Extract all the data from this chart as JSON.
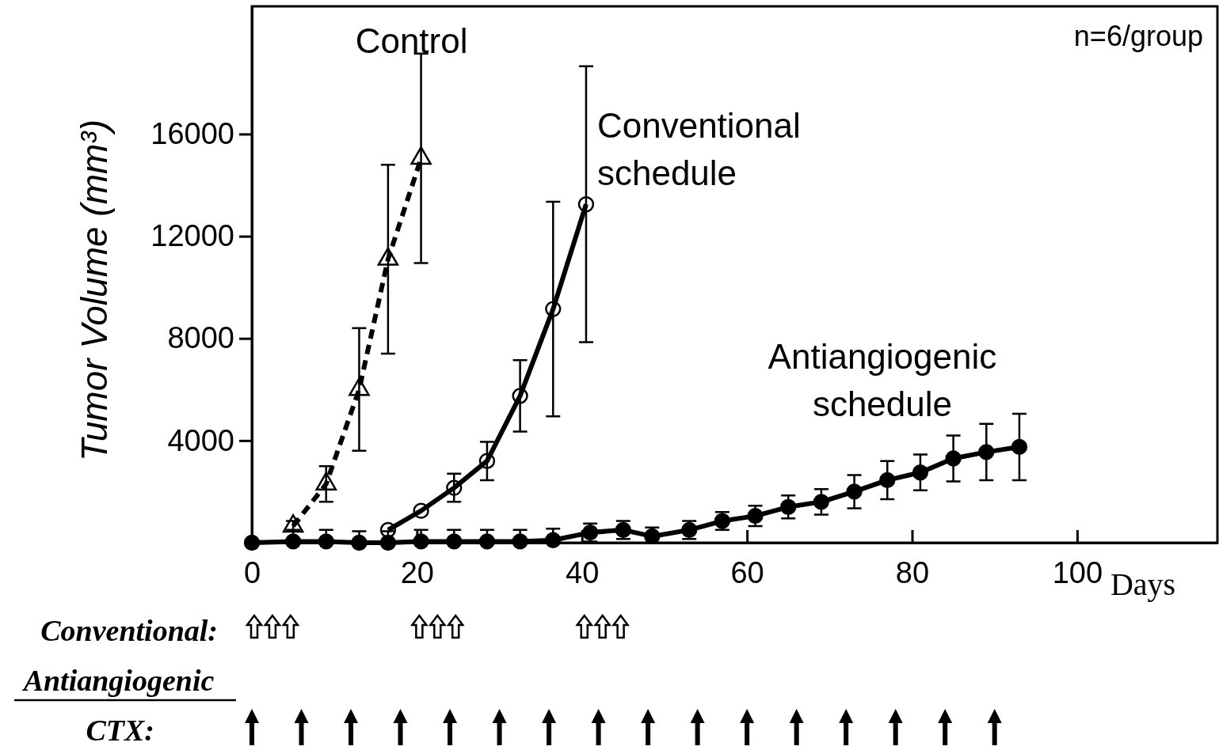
{
  "chart_data": {
    "type": "line",
    "ylabel": "Tumor Volume  (mm³)",
    "xlabel": "Days",
    "xlim": [
      0,
      117
    ],
    "ylim": [
      0,
      21000
    ],
    "xticks": [
      0,
      20,
      40,
      60,
      80,
      100
    ],
    "yticks": [
      4000,
      8000,
      12000,
      16000
    ],
    "grid": false,
    "series": [
      {
        "name": "Control",
        "color": "#000000",
        "marker": "triangle",
        "line_style": "dashed",
        "x": [
          5,
          9,
          13,
          16.5,
          20.5
        ],
        "values": [
          650,
          2300,
          6000,
          11100,
          15050
        ],
        "errors": [
          200,
          700,
          2400,
          3700,
          4100
        ]
      },
      {
        "name": "Conventional\nschedule",
        "color": "#000000",
        "marker": "circle",
        "line_style": "solid",
        "x": [
          16.5,
          20.5,
          24.5,
          28.5,
          32.5,
          36.5,
          40.5
        ],
        "values": [
          500,
          1250,
          2150,
          3200,
          5750,
          9150,
          13250
        ],
        "errors": [
          null,
          null,
          550,
          750,
          1400,
          4200,
          5400
        ]
      },
      {
        "name": "Antiangiogenic\nschedule",
        "color": "#000000",
        "marker": "circle",
        "line_style": "solid",
        "x": [
          0,
          5,
          9,
          13,
          16.5,
          20.5,
          24.5,
          28.5,
          32.5,
          36.5,
          41,
          45,
          48.5,
          53,
          57,
          61,
          65,
          69,
          73,
          77,
          81,
          85,
          89,
          93
        ],
        "values": [
          0,
          50,
          50,
          0,
          0,
          50,
          50,
          50,
          50,
          100,
          400,
          500,
          250,
          500,
          850,
          1050,
          1400,
          1600,
          2000,
          2450,
          2750,
          3300,
          3550,
          3750
        ],
        "errors": [
          null,
          [
            50,
            500
          ],
          [
            50,
            500
          ],
          [
            0,
            450
          ],
          [
            0,
            450
          ],
          [
            50,
            500
          ],
          [
            50,
            500
          ],
          [
            50,
            500
          ],
          [
            50,
            500
          ],
          [
            100,
            550
          ],
          350,
          350,
          [
            0,
            600
          ],
          350,
          350,
          400,
          450,
          500,
          650,
          750,
          700,
          900,
          1100,
          1300
        ]
      }
    ],
    "annotations": [
      "n=6/group",
      "Conventional:",
      "Antiangiogenic",
      "CTX:"
    ]
  }
}
